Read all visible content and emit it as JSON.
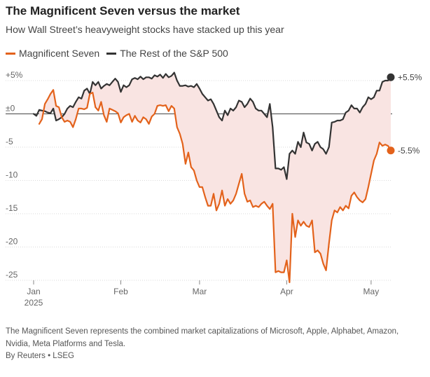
{
  "header": {
    "title": "The Magnificent Seven versus the market",
    "subtitle": "How Wall Street’s heavyweight stocks have stacked up this year"
  },
  "footer": {
    "note": "The Magnificent Seven represents the combined market capitalizations of Microsoft, Apple, Alphabet, Amazon, Nvidia, Meta Platforms and Tesla.",
    "source": "By Reuters • LSEG"
  },
  "chart_data": {
    "type": "line",
    "title": "",
    "xlabel": "",
    "ylabel": "",
    "ylim": [
      -25,
      6
    ],
    "x_ticks": [
      {
        "label": "Jan",
        "sublabel": "2025",
        "day": 0
      },
      {
        "label": "Feb",
        "day": 31
      },
      {
        "label": "Mar",
        "day": 59
      },
      {
        "label": "Apr",
        "day": 90
      },
      {
        "label": "May",
        "day": 120
      }
    ],
    "y_ticks": [
      {
        "value": 5,
        "label": "+5%"
      },
      {
        "value": 0,
        "label": "±0"
      },
      {
        "value": -5,
        "label": "-5"
      },
      {
        "value": -10,
        "label": "-10"
      },
      {
        "value": -15,
        "label": "-15"
      },
      {
        "value": -20,
        "label": "-20"
      },
      {
        "value": -25,
        "label": "-25"
      }
    ],
    "legend_position": "top-left",
    "fill_between_series": true,
    "fill_color": "#f9e4e2",
    "series": [
      {
        "name": "Magnificent Seven",
        "color": "#e3621b",
        "end_label": "-5.5%",
        "points": [
          [
            2,
            -1.5
          ],
          [
            3,
            -0.8
          ],
          [
            4,
            1.5
          ],
          [
            5,
            2.2
          ],
          [
            6,
            3.0
          ],
          [
            7,
            3.6
          ],
          [
            8,
            1.2
          ],
          [
            9,
            1.0
          ],
          [
            10,
            -0.5
          ],
          [
            11,
            -1.2
          ],
          [
            12,
            -1.0
          ],
          [
            13,
            -1.2
          ],
          [
            14,
            -2.0
          ],
          [
            15,
            -0.8
          ],
          [
            16,
            0.8
          ],
          [
            17,
            0.8
          ],
          [
            18,
            0.7
          ],
          [
            19,
            0.9
          ],
          [
            20,
            3.0
          ],
          [
            21,
            3.2
          ],
          [
            22,
            1.0
          ],
          [
            23,
            0.5
          ],
          [
            24,
            1.8
          ],
          [
            25,
            -0.2
          ],
          [
            26,
            -1.2
          ],
          [
            27,
            0.8
          ],
          [
            28,
            0.6
          ],
          [
            29,
            0.4
          ],
          [
            30,
            0.1
          ],
          [
            31,
            -1.3
          ],
          [
            32,
            -0.5
          ],
          [
            33,
            -0.2
          ],
          [
            34,
            0.0
          ],
          [
            35,
            -1.2
          ],
          [
            36,
            -0.3
          ],
          [
            37,
            -1.0
          ],
          [
            38,
            -1.3
          ],
          [
            39,
            -0.5
          ],
          [
            40,
            -0.8
          ],
          [
            41,
            -1.5
          ],
          [
            42,
            -0.4
          ],
          [
            43,
            0.0
          ],
          [
            44,
            1.2
          ],
          [
            45,
            1.3
          ],
          [
            46,
            1.2
          ],
          [
            47,
            1.3
          ],
          [
            48,
            0.4
          ],
          [
            49,
            1.2
          ],
          [
            50,
            0.8
          ],
          [
            51,
            -2.0
          ],
          [
            52,
            -3.0
          ],
          [
            53,
            -4.5
          ],
          [
            54,
            -7.5
          ],
          [
            55,
            -5.8
          ],
          [
            56,
            -8.0
          ],
          [
            57,
            -8.5
          ],
          [
            58,
            -10.0
          ],
          [
            59,
            -11.0
          ],
          [
            60,
            -11.0
          ],
          [
            61,
            -12.5
          ],
          [
            62,
            -13.8
          ],
          [
            63,
            -13.8
          ],
          [
            64,
            -12.0
          ],
          [
            65,
            -14.5
          ],
          [
            66,
            -13.5
          ],
          [
            67,
            -11.5
          ],
          [
            68,
            -13.8
          ],
          [
            69,
            -12.8
          ],
          [
            70,
            -13.5
          ],
          [
            71,
            -13.0
          ],
          [
            72,
            -12.0
          ],
          [
            73,
            -10.5
          ],
          [
            74,
            -9.0
          ],
          [
            75,
            -12.0
          ],
          [
            76,
            -13.2
          ],
          [
            77,
            -13.0
          ],
          [
            78,
            -14.0
          ],
          [
            79,
            -13.8
          ],
          [
            80,
            -14.0
          ],
          [
            81,
            -13.5
          ],
          [
            82,
            -13.2
          ],
          [
            83,
            -13.8
          ],
          [
            84,
            -14.3
          ],
          [
            85,
            -13.5
          ],
          [
            86,
            -23.8
          ],
          [
            87,
            -23.6
          ],
          [
            88,
            -23.8
          ],
          [
            89,
            -23.8
          ],
          [
            90,
            -22.0
          ],
          [
            91,
            -25.3
          ],
          [
            92,
            -15.0
          ],
          [
            93,
            -18.5
          ],
          [
            94,
            -16.0
          ],
          [
            95,
            -16.8
          ],
          [
            96,
            -16.2
          ],
          [
            97,
            -16.8
          ],
          [
            98,
            -17.0
          ],
          [
            99,
            -16.0
          ],
          [
            100,
            -20.8
          ],
          [
            101,
            -20.5
          ],
          [
            102,
            -21.0
          ],
          [
            103,
            -22.5
          ],
          [
            104,
            -23.5
          ],
          [
            105,
            -19.5
          ],
          [
            106,
            -16.0
          ],
          [
            107,
            -14.5
          ],
          [
            108,
            -14.8
          ],
          [
            109,
            -14.0
          ],
          [
            110,
            -14.5
          ],
          [
            111,
            -13.8
          ],
          [
            112,
            -14.2
          ],
          [
            113,
            -12.3
          ],
          [
            114,
            -11.8
          ],
          [
            115,
            -12.5
          ],
          [
            116,
            -13.0
          ],
          [
            117,
            -13.3
          ],
          [
            118,
            -12.8
          ],
          [
            119,
            -11.0
          ],
          [
            120,
            -9.0
          ],
          [
            121,
            -7.0
          ],
          [
            122,
            -6.0
          ],
          [
            123,
            -4.3
          ],
          [
            124,
            -4.8
          ],
          [
            125,
            -4.6
          ],
          [
            126,
            -4.8
          ],
          [
            127,
            -5.5
          ]
        ]
      },
      {
        "name": "The Rest of the S&P 500",
        "color": "#333333",
        "end_label": "+5.5%",
        "points": [
          [
            0,
            0.0
          ],
          [
            1,
            -0.3
          ],
          [
            2,
            0.6
          ],
          [
            3,
            0.5
          ],
          [
            4,
            0.4
          ],
          [
            5,
            0.2
          ],
          [
            6,
            0.1
          ],
          [
            7,
            0.8
          ],
          [
            8,
            -1.0
          ],
          [
            9,
            -0.8
          ],
          [
            10,
            -0.5
          ],
          [
            11,
            0.0
          ],
          [
            12,
            0.8
          ],
          [
            13,
            1.2
          ],
          [
            14,
            1.0
          ],
          [
            15,
            1.8
          ],
          [
            16,
            2.5
          ],
          [
            17,
            2.3
          ],
          [
            18,
            3.5
          ],
          [
            19,
            3.8
          ],
          [
            20,
            3.0
          ],
          [
            21,
            4.8
          ],
          [
            22,
            4.3
          ],
          [
            23,
            4.8
          ],
          [
            24,
            3.8
          ],
          [
            25,
            4.2
          ],
          [
            26,
            4.5
          ],
          [
            27,
            4.3
          ],
          [
            28,
            4.8
          ],
          [
            29,
            5.3
          ],
          [
            30,
            4.8
          ],
          [
            31,
            3.3
          ],
          [
            32,
            4.3
          ],
          [
            33,
            4.0
          ],
          [
            34,
            4.3
          ],
          [
            35,
            5.2
          ],
          [
            36,
            5.4
          ],
          [
            37,
            5.2
          ],
          [
            38,
            5.6
          ],
          [
            39,
            5.2
          ],
          [
            40,
            5.5
          ],
          [
            41,
            5.5
          ],
          [
            42,
            5.3
          ],
          [
            43,
            5.8
          ],
          [
            44,
            5.6
          ],
          [
            45,
            5.9
          ],
          [
            46,
            5.4
          ],
          [
            47,
            6.0
          ],
          [
            48,
            5.5
          ],
          [
            49,
            5.7
          ],
          [
            50,
            6.2
          ],
          [
            51,
            5.0
          ],
          [
            52,
            4.2
          ],
          [
            53,
            4.2
          ],
          [
            54,
            4.3
          ],
          [
            55,
            4.1
          ],
          [
            56,
            4.2
          ],
          [
            57,
            4.0
          ],
          [
            58,
            4.5
          ],
          [
            59,
            3.8
          ],
          [
            60,
            3.0
          ],
          [
            61,
            2.5
          ],
          [
            62,
            2.0
          ],
          [
            63,
            2.2
          ],
          [
            64,
            1.5
          ],
          [
            65,
            0.5
          ],
          [
            66,
            -0.5
          ],
          [
            67,
            -1.0
          ],
          [
            68,
            0.5
          ],
          [
            69,
            -0.2
          ],
          [
            70,
            0.8
          ],
          [
            71,
            0.5
          ],
          [
            72,
            1.0
          ],
          [
            73,
            2.0
          ],
          [
            74,
            1.8
          ],
          [
            75,
            1.0
          ],
          [
            76,
            1.5
          ],
          [
            77,
            2.3
          ],
          [
            78,
            1.8
          ],
          [
            79,
            0.8
          ],
          [
            80,
            0.5
          ],
          [
            81,
            0.5
          ],
          [
            82,
            0.0
          ],
          [
            83,
            -0.5
          ],
          [
            84,
            1.5
          ],
          [
            85,
            -2.0
          ],
          [
            86,
            -8.2
          ],
          [
            87,
            -8.2
          ],
          [
            88,
            -8.4
          ],
          [
            89,
            -8.0
          ],
          [
            90,
            -9.8
          ],
          [
            91,
            -6.0
          ],
          [
            92,
            -5.5
          ],
          [
            93,
            -6.0
          ],
          [
            94,
            -4.2
          ],
          [
            95,
            -5.0
          ],
          [
            96,
            -2.8
          ],
          [
            97,
            -4.3
          ],
          [
            98,
            -4.5
          ],
          [
            99,
            -5.5
          ],
          [
            100,
            -4.5
          ],
          [
            101,
            -4.2
          ],
          [
            102,
            -5.0
          ],
          [
            103,
            -5.3
          ],
          [
            104,
            -6.0
          ],
          [
            105,
            -5.0
          ],
          [
            106,
            -1.3
          ],
          [
            107,
            -1.2
          ],
          [
            108,
            -1.0
          ],
          [
            109,
            -1.0
          ],
          [
            110,
            -0.8
          ],
          [
            111,
            0.2
          ],
          [
            112,
            0.5
          ],
          [
            113,
            1.3
          ],
          [
            114,
            0.8
          ],
          [
            115,
            0.8
          ],
          [
            116,
            0.2
          ],
          [
            117,
            1.0
          ],
          [
            118,
            1.5
          ],
          [
            119,
            2.5
          ],
          [
            120,
            2.2
          ],
          [
            121,
            2.5
          ],
          [
            122,
            3.5
          ],
          [
            123,
            3.5
          ],
          [
            124,
            4.8
          ],
          [
            125,
            5.0
          ],
          [
            126,
            5.0
          ],
          [
            127,
            5.5
          ]
        ]
      }
    ]
  }
}
